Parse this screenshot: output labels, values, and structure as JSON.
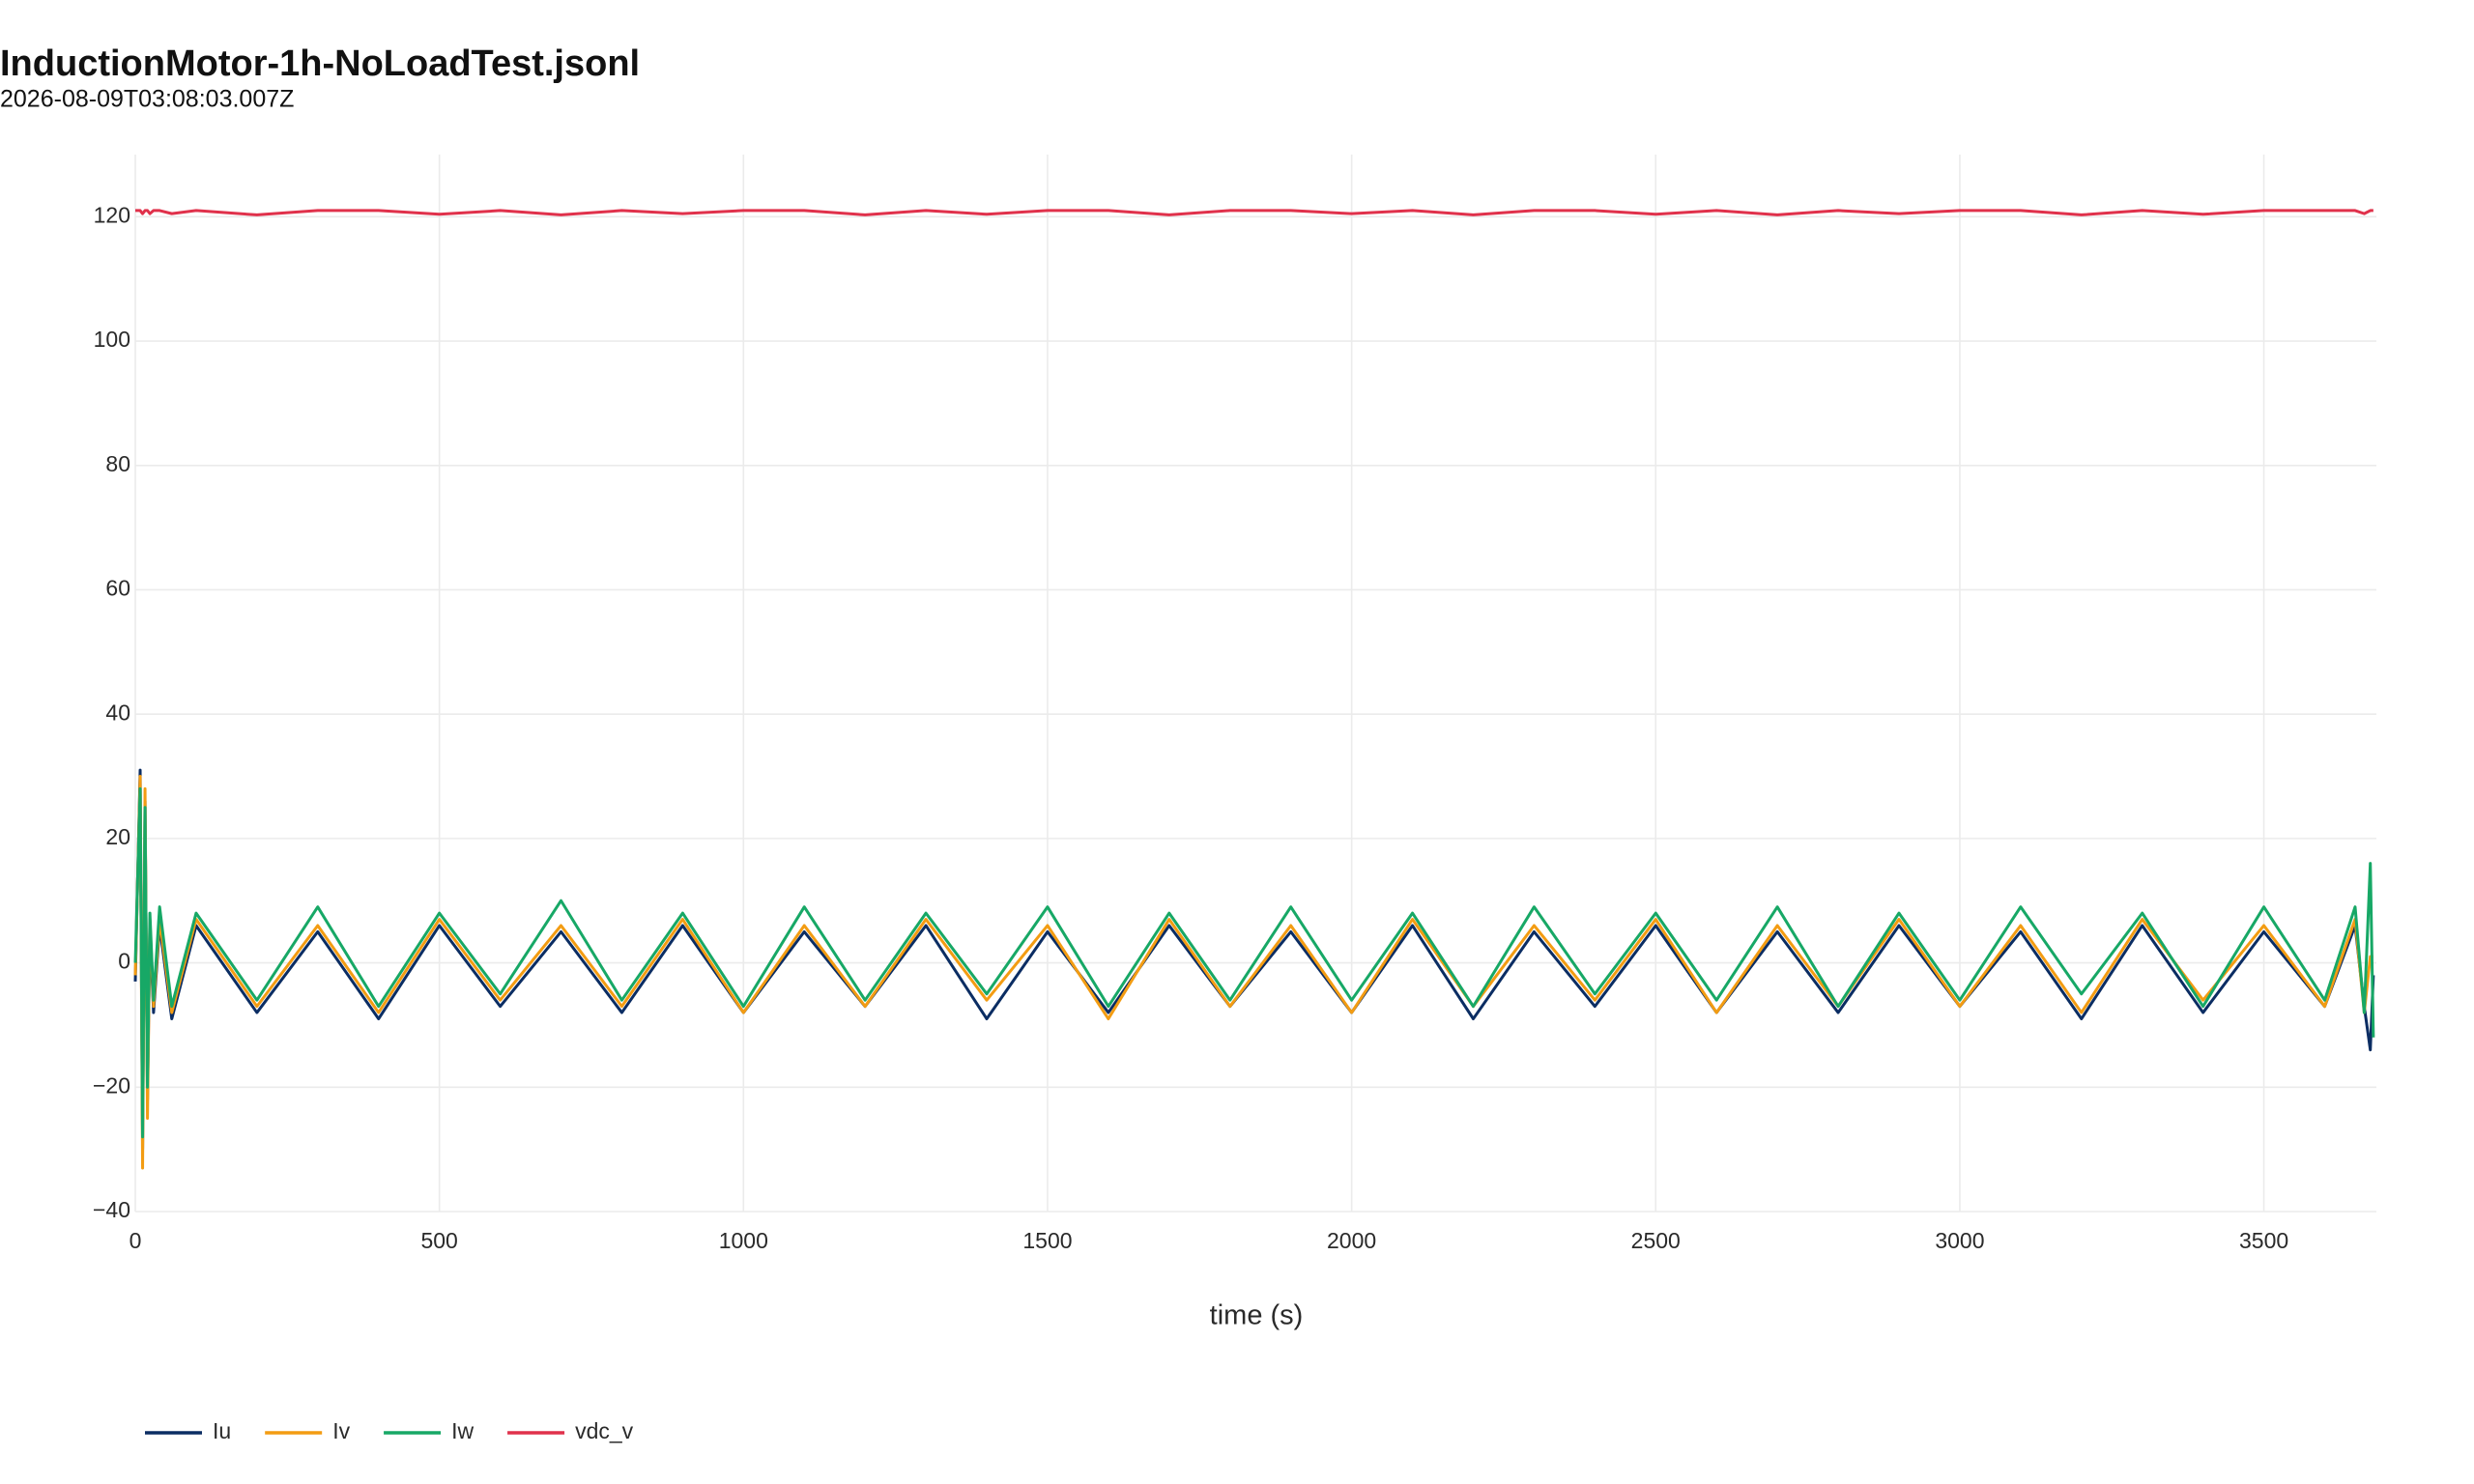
{
  "chart_data": {
    "type": "line",
    "title": "InductionMotor-1h-NoLoadTest.jsonl",
    "subtitle": "2026-08-09T03:08:03.007Z",
    "x_label": "time (s)",
    "xlim": [
      0,
      3685
    ],
    "ylim": [
      -40,
      130
    ],
    "xticks": [
      0,
      500,
      1000,
      1500,
      2000,
      2500,
      3000,
      3500
    ],
    "yticks": [
      {
        "value": -40,
        "label": "−40"
      },
      {
        "value": -20,
        "label": "−20"
      },
      0,
      20,
      40,
      60,
      80,
      100,
      120
    ],
    "grid": true,
    "legend": "bottom-left",
    "x": [
      0,
      8,
      12,
      16,
      20,
      24,
      30,
      40,
      60,
      100,
      200,
      300,
      400,
      500,
      600,
      700,
      800,
      900,
      1000,
      1100,
      1200,
      1300,
      1400,
      1500,
      1600,
      1700,
      1800,
      1900,
      2000,
      2100,
      2200,
      2300,
      2400,
      2500,
      2600,
      2700,
      2800,
      2900,
      3000,
      3100,
      3200,
      3300,
      3400,
      3500,
      3600,
      3650,
      3665,
      3675,
      3680
    ],
    "series": [
      {
        "name": "Iu",
        "color": "#0b2d63",
        "values": [
          -3,
          31,
          -30,
          26,
          -22,
          6,
          -8,
          6,
          -9,
          6,
          -8,
          5,
          -9,
          6,
          -7,
          5,
          -8,
          6,
          -8,
          5,
          -7,
          6,
          -9,
          5,
          -8,
          6,
          -7,
          5,
          -8,
          6,
          -9,
          5,
          -7,
          6,
          -8,
          5,
          -8,
          6,
          -7,
          5,
          -9,
          6,
          -8,
          5,
          -7,
          6,
          -7,
          -14,
          -2
        ]
      },
      {
        "name": "Iv",
        "color": "#f39c12",
        "values": [
          -2,
          30,
          -33,
          28,
          -25,
          7,
          -7,
          7,
          -8,
          7,
          -7,
          6,
          -8,
          7,
          -6,
          6,
          -7,
          7,
          -8,
          6,
          -7,
          7,
          -6,
          6,
          -9,
          7,
          -7,
          6,
          -8,
          7,
          -7,
          6,
          -6,
          7,
          -8,
          6,
          -7,
          7,
          -7,
          6,
          -8,
          7,
          -6,
          6,
          -7,
          7,
          -8,
          1,
          1
        ]
      },
      {
        "name": "Iw",
        "color": "#17a866",
        "values": [
          0,
          28,
          -28,
          25,
          -20,
          8,
          -6,
          9,
          -7,
          8,
          -6,
          9,
          -7,
          8,
          -5,
          10,
          -6,
          8,
          -7,
          9,
          -6,
          8,
          -5,
          9,
          -7,
          8,
          -6,
          9,
          -6,
          8,
          -7,
          9,
          -5,
          8,
          -6,
          9,
          -7,
          8,
          -6,
          9,
          -5,
          8,
          -7,
          9,
          -6,
          9,
          -8,
          16,
          -12
        ]
      },
      {
        "name": "vdc_v",
        "color": "#e0314b",
        "values": [
          121,
          121,
          120.5,
          121,
          121,
          120.5,
          121,
          121,
          120.5,
          121,
          120.3,
          121,
          121,
          120.4,
          121,
          120.3,
          121,
          120.5,
          121,
          121,
          120.3,
          121,
          120.4,
          121,
          121,
          120.3,
          121,
          121,
          120.5,
          121,
          120.3,
          121,
          121,
          120.4,
          121,
          120.3,
          121,
          120.5,
          121,
          121,
          120.3,
          121,
          120.4,
          121,
          121,
          121,
          120.5,
          121,
          121
        ]
      }
    ]
  }
}
